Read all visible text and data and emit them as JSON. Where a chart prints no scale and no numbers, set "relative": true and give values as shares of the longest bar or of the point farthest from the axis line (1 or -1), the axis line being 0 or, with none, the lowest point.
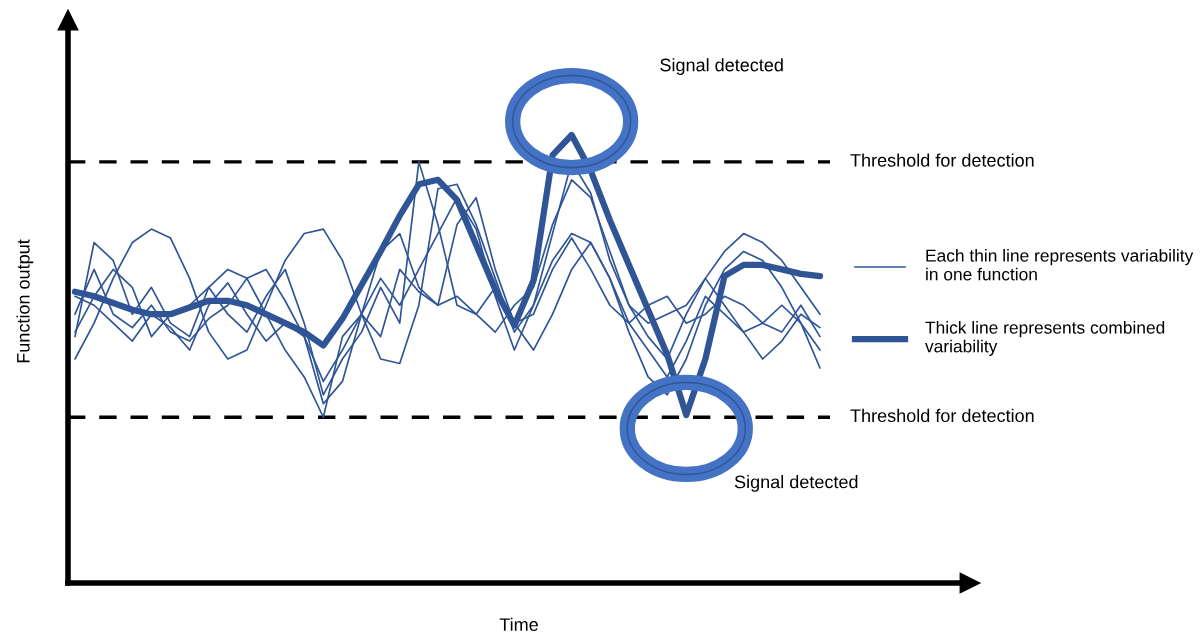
{
  "chart_data": {
    "type": "line",
    "relative": true,
    "xlabel": "Time",
    "ylabel": "Function output",
    "categories": [
      null,
      null,
      null,
      null,
      null,
      null,
      null,
      null,
      null,
      null,
      null,
      null,
      null,
      null,
      null,
      null,
      null,
      null,
      null,
      null,
      null,
      null,
      null,
      null,
      null,
      null,
      null,
      null,
      null,
      null,
      null,
      null,
      null,
      null,
      null,
      null,
      null,
      null,
      null,
      null
    ],
    "series": [
      {
        "name": "Each thin line represents variability in one function",
        "color": "#2f5597",
        "values": [
          0.5,
          0.58,
          0.68,
          0.76,
          0.79,
          0.77,
          0.68,
          0.56,
          0.5,
          0.52,
          0.62,
          0.72,
          0.78,
          0.79,
          0.72,
          0.6,
          0.5,
          0.49,
          0.62,
          0.88,
          0.89,
          0.8,
          0.68,
          0.56,
          0.62,
          0.72,
          0.78,
          0.76,
          0.68,
          0.56,
          0.46,
          0.42,
          0.5,
          0.62,
          0.7,
          0.74,
          0.72,
          0.66,
          0.58,
          0.52
        ]
      },
      {
        "color": "#2f5597",
        "values": [
          0.55,
          0.76,
          0.72,
          0.6,
          0.66,
          0.58,
          0.55,
          0.66,
          0.6,
          0.56,
          0.64,
          0.7,
          0.58,
          0.42,
          0.5,
          0.56,
          0.66,
          0.58,
          0.94,
          0.8,
          0.62,
          0.6,
          0.66,
          0.58,
          0.6,
          0.7,
          0.77,
          0.7,
          0.62,
          0.58,
          0.62,
          0.64,
          0.58,
          0.6,
          0.64,
          0.62,
          0.58,
          0.56,
          0.62,
          0.55
        ]
      },
      {
        "color": "#2f5597",
        "values": [
          0.6,
          0.7,
          0.6,
          0.57,
          0.62,
          0.56,
          0.54,
          0.59,
          0.62,
          0.68,
          0.7,
          0.63,
          0.55,
          0.4,
          0.45,
          0.6,
          0.68,
          0.62,
          0.7,
          0.78,
          0.86,
          0.79,
          0.64,
          0.52,
          0.62,
          0.78,
          0.94,
          0.87,
          0.72,
          0.62,
          0.55,
          0.5,
          0.6,
          0.68,
          0.74,
          0.78,
          0.76,
          0.72,
          0.66,
          0.6
        ]
      },
      {
        "color": "#2f5597",
        "values": [
          0.56,
          0.64,
          0.7,
          0.66,
          0.55,
          0.6,
          0.62,
          0.66,
          0.7,
          0.68,
          0.6,
          0.52,
          0.46,
          0.37,
          0.55,
          0.6,
          0.55,
          0.7,
          0.65,
          0.62,
          0.8,
          0.86,
          0.7,
          0.58,
          0.52,
          0.6,
          0.7,
          0.76,
          0.68,
          0.58,
          0.52,
          0.46,
          0.54,
          0.64,
          0.6,
          0.56,
          0.58,
          0.62,
          0.58,
          0.48
        ]
      },
      {
        "color": "#2f5597",
        "values": [
          0.64,
          0.62,
          0.58,
          0.54,
          0.6,
          0.57,
          0.52,
          0.62,
          0.67,
          0.6,
          0.54,
          0.58,
          0.55,
          0.45,
          0.52,
          0.6,
          0.74,
          0.78,
          0.66,
          0.62,
          0.64,
          0.6,
          0.56,
          0.62,
          0.66,
          0.8,
          0.9,
          0.86,
          0.74,
          0.62,
          0.58,
          0.6,
          0.62,
          0.68,
          0.62,
          0.56,
          0.5,
          0.54,
          0.6,
          0.57
        ]
      },
      {
        "name": "Thick line represents combined variability",
        "color": "#2f5597",
        "values": [
          0.65,
          0.64,
          0.625,
          0.61,
          0.6,
          0.6,
          0.615,
          0.63,
          0.63,
          0.62,
          0.6,
          0.58,
          0.56,
          0.53,
          0.59,
          0.665,
          0.74,
          0.82,
          0.89,
          0.9,
          0.855,
          0.755,
          0.655,
          0.575,
          0.675,
          0.955,
          1.0,
          0.92,
          0.81,
          0.71,
          0.61,
          0.51,
          0.375,
          0.5,
          0.685,
          0.71,
          0.71,
          0.7,
          0.69,
          0.685
        ]
      }
    ],
    "ref_lines": [
      {
        "axis": "y",
        "value": 0.94,
        "label": "Threshold for detection",
        "color": "#000000",
        "line_style": "dashed"
      },
      {
        "axis": "y",
        "value": 0.37,
        "label": "Threshold for detection",
        "color": "#000000",
        "line_style": "dashed"
      }
    ],
    "annotations": [
      "Signal detected",
      "Signal detected"
    ],
    "legend": "right"
  }
}
